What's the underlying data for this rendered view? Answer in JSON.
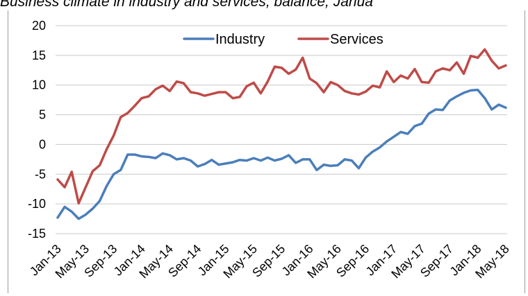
{
  "chart_data": {
    "type": "line",
    "title": "Business climate in industry and services, balance, Janua",
    "xlabel": "",
    "ylabel": "",
    "ylim": [
      -15,
      20
    ],
    "yticks": [
      -15,
      -10,
      -5,
      0,
      5,
      10,
      15,
      20
    ],
    "legend_position": "top",
    "grid": "horizontal",
    "x": [
      "Jan-13",
      "Feb-13",
      "Mar-13",
      "Apr-13",
      "May-13",
      "Jun-13",
      "Jul-13",
      "Aug-13",
      "Sep-13",
      "Oct-13",
      "Nov-13",
      "Dec-13",
      "Jan-14",
      "Feb-14",
      "Mar-14",
      "Apr-14",
      "May-14",
      "Jun-14",
      "Jul-14",
      "Aug-14",
      "Sep-14",
      "Oct-14",
      "Nov-14",
      "Dec-14",
      "Jan-15",
      "Feb-15",
      "Mar-15",
      "Apr-15",
      "May-15",
      "Jun-15",
      "Jul-15",
      "Aug-15",
      "Sep-15",
      "Oct-15",
      "Nov-15",
      "Dec-15",
      "Jan-16",
      "Feb-16",
      "Mar-16",
      "Apr-16",
      "May-16",
      "Jun-16",
      "Jul-16",
      "Aug-16",
      "Sep-16",
      "Oct-16",
      "Nov-16",
      "Dec-16",
      "Jan-17",
      "Feb-17",
      "Mar-17",
      "Apr-17",
      "May-17",
      "Jun-17",
      "Jul-17",
      "Aug-17",
      "Sep-17",
      "Oct-17",
      "Nov-17",
      "Dec-17",
      "Jan-18",
      "Feb-18",
      "Mar-18",
      "Apr-18",
      "May-18"
    ],
    "xtick_labels": [
      "Jan-13",
      "May-13",
      "Sep-13",
      "Jan-14",
      "May-14",
      "Sep-14",
      "Jan-15",
      "May-15",
      "Sep-15",
      "Jan-16",
      "May-16",
      "Sep-16",
      "Jan-17",
      "May-17",
      "Sep-17",
      "Jan-18",
      "May-18"
    ],
    "series": [
      {
        "name": "Industry",
        "color": "#4a7ebb",
        "values": [
          -12.3,
          -10.5,
          -11.3,
          -12.5,
          -11.8,
          -10.8,
          -9.5,
          -7.0,
          -5.0,
          -4.3,
          -1.7,
          -1.7,
          -2.0,
          -2.1,
          -2.3,
          -1.5,
          -1.8,
          -2.5,
          -2.3,
          -2.7,
          -3.7,
          -3.3,
          -2.6,
          -3.4,
          -3.2,
          -3.0,
          -2.6,
          -2.7,
          -2.3,
          -2.7,
          -2.2,
          -2.7,
          -2.4,
          -1.8,
          -3.1,
          -2.5,
          -2.5,
          -4.3,
          -3.4,
          -3.6,
          -3.5,
          -2.5,
          -2.7,
          -4.0,
          -2.2,
          -1.2,
          -0.5,
          0.5,
          1.3,
          2.1,
          1.8,
          3.1,
          3.5,
          5.2,
          5.9,
          5.8,
          7.4,
          8.1,
          8.7,
          9.1,
          9.2,
          7.8,
          5.9,
          6.7,
          6.2
        ]
      },
      {
        "name": "Services",
        "color": "#be4b48",
        "values": [
          -5.9,
          -7.2,
          -4.6,
          -9.9,
          -7.2,
          -4.5,
          -3.5,
          -0.8,
          1.5,
          4.6,
          5.3,
          6.5,
          7.8,
          8.1,
          9.3,
          9.9,
          9.0,
          10.6,
          10.3,
          8.8,
          8.6,
          8.2,
          8.5,
          8.8,
          8.8,
          7.8,
          8.0,
          9.8,
          10.4,
          8.6,
          10.6,
          13.1,
          12.9,
          11.9,
          12.6,
          14.6,
          11.1,
          10.3,
          8.8,
          10.5,
          10.0,
          9.0,
          8.6,
          8.4,
          8.9,
          9.9,
          9.6,
          12.3,
          10.5,
          11.6,
          11.1,
          12.7,
          10.5,
          10.4,
          12.3,
          12.8,
          12.5,
          13.8,
          11.9,
          14.9,
          14.6,
          16.0,
          14.1,
          12.8,
          13.3
        ]
      }
    ]
  }
}
